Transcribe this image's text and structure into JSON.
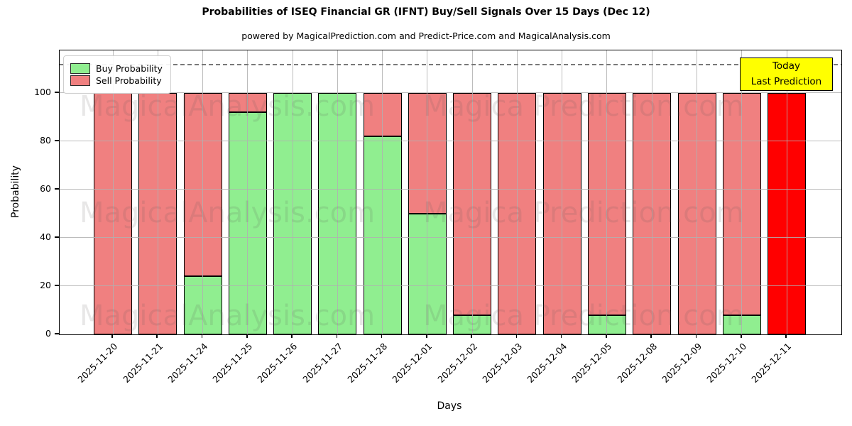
{
  "title": "Probabilities of ISEQ Financial GR (IFNT) Buy/Sell Signals Over 15 Days (Dec 12)",
  "subtitle": "powered by MagicalPrediction.com and Predict-Price.com and MagicalAnalysis.com",
  "watermarks": {
    "left": "MagicalAnalysis.com",
    "right": "Magica Prediction.com"
  },
  "annotation_box": {
    "line1": "Today",
    "line2": "Last Prediction",
    "bg_color": "#ffff00"
  },
  "legend": [
    {
      "label": "Buy Probability",
      "color": "#90ee90"
    },
    {
      "label": "Sell Probability",
      "color": "#f08080"
    }
  ],
  "colors": {
    "buy": "#90ee90",
    "sell": "#f08080",
    "today_bar": "#ff0000",
    "bar_edge": "#000000",
    "grid": "#b0b0b0",
    "dashed_line": "#787878",
    "background": "#ffffff"
  },
  "chart_data": {
    "type": "bar",
    "stacked": true,
    "title": "Probabilities of ISEQ Financial GR (IFNT) Buy/Sell Signals Over 15 Days (Dec 12)",
    "xlabel": "Days",
    "ylabel": "Probability",
    "categories": [
      "2025-11-20",
      "2025-11-21",
      "2025-11-24",
      "2025-11-25",
      "2025-11-26",
      "2025-11-27",
      "2025-11-28",
      "2025-12-01",
      "2025-12-02",
      "2025-12-03",
      "2025-12-04",
      "2025-12-05",
      "2025-12-08",
      "2025-12-09",
      "2025-12-10",
      "2025-12-11"
    ],
    "series": [
      {
        "name": "Buy Probability",
        "color": "#90ee90",
        "values": [
          0,
          0,
          24,
          92,
          100,
          100,
          82,
          50,
          8,
          0,
          0,
          8,
          0,
          0,
          8,
          0
        ]
      },
      {
        "name": "Sell Probability",
        "color": "#f08080",
        "values": [
          100,
          100,
          76,
          8,
          0,
          0,
          18,
          50,
          92,
          100,
          100,
          92,
          100,
          100,
          92,
          100
        ]
      }
    ],
    "today_index": 15,
    "today_color": "#ff0000",
    "ylim": [
      0,
      117.6
    ],
    "yticks": [
      0,
      20,
      40,
      60,
      80,
      100
    ],
    "dashed_line_y": 112,
    "grid": true,
    "legend_position": "upper left"
  }
}
